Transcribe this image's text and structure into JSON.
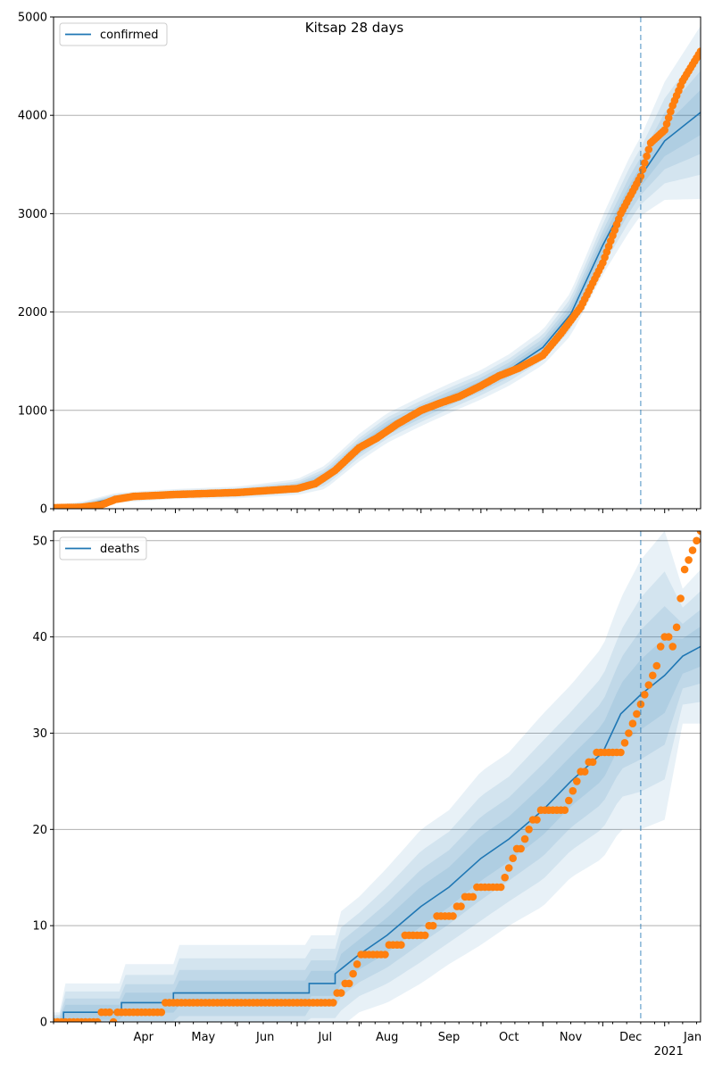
{
  "figure": {
    "title": "Kitsap 28 days"
  },
  "colors": {
    "model": "#1f77b4",
    "observed": "#ff7f0e",
    "band": "#1f77b4",
    "grid": "#b0b0b0",
    "forecast_line": "#1f77b4"
  },
  "x_axis": {
    "months": [
      {
        "label": "Apr",
        "date": "2020-04-01"
      },
      {
        "label": "May",
        "date": "2020-05-01"
      },
      {
        "label": "Jun",
        "date": "2020-06-01"
      },
      {
        "label": "Jul",
        "date": "2020-07-01"
      },
      {
        "label": "Aug",
        "date": "2020-08-01"
      },
      {
        "label": "Sep",
        "date": "2020-09-01"
      },
      {
        "label": "Oct",
        "date": "2020-10-01"
      },
      {
        "label": "Nov",
        "date": "2020-11-01"
      },
      {
        "label": "Dec",
        "date": "2020-12-01"
      },
      {
        "label": "Jan",
        "date": "2021-01-01"
      }
    ],
    "year_label": "2021",
    "xlim": [
      "2020-03-01",
      "2021-01-19"
    ],
    "forecast_start": "2020-12-20"
  },
  "chart_data": [
    {
      "type": "line",
      "legend": "confirmed",
      "legend_position": "top-left",
      "ylim": [
        0,
        5000
      ],
      "yticks": [
        0,
        1000,
        2000,
        3000,
        4000,
        5000
      ],
      "grid": "horizontal",
      "model": {
        "x": [
          "2020-03-01",
          "2020-03-15",
          "2020-04-01",
          "2020-04-15",
          "2020-05-01",
          "2020-06-01",
          "2020-07-01",
          "2020-07-15",
          "2020-08-01",
          "2020-08-15",
          "2020-09-01",
          "2020-09-15",
          "2020-10-01",
          "2020-10-15",
          "2020-11-01",
          "2020-11-15",
          "2020-12-01",
          "2020-12-15",
          "2020-12-20",
          "2021-01-01",
          "2021-01-19"
        ],
        "y": [
          10,
          30,
          110,
          130,
          150,
          165,
          220,
          320,
          620,
          820,
          990,
          1120,
          1260,
          1410,
          1640,
          1980,
          2680,
          3220,
          3380,
          3740,
          4030
        ],
        "band_spread": [
          30,
          40,
          50,
          50,
          50,
          60,
          80,
          120,
          140,
          150,
          150,
          150,
          150,
          160,
          180,
          220,
          300,
          380,
          400,
          600,
          880
        ]
      },
      "observed": {
        "x": [
          "2020-03-01",
          "2020-03-15",
          "2020-03-25",
          "2020-04-01",
          "2020-04-10",
          "2020-05-01",
          "2020-06-01",
          "2020-07-01",
          "2020-07-10",
          "2020-07-20",
          "2020-08-01",
          "2020-08-10",
          "2020-08-20",
          "2020-09-01",
          "2020-09-10",
          "2020-09-20",
          "2020-10-01",
          "2020-10-10",
          "2020-10-20",
          "2020-11-01",
          "2020-11-10",
          "2020-11-20",
          "2020-12-01",
          "2020-12-10",
          "2020-12-20",
          "2020-12-25",
          "2021-01-01",
          "2021-01-05",
          "2021-01-10",
          "2021-01-19"
        ],
        "y": [
          10,
          15,
          40,
          95,
          125,
          145,
          165,
          205,
          255,
          390,
          620,
          720,
          860,
          1000,
          1070,
          1140,
          1250,
          1350,
          1430,
          1560,
          1780,
          2050,
          2500,
          3000,
          3380,
          3720,
          3850,
          4100,
          4350,
          4650
        ]
      }
    },
    {
      "type": "line",
      "legend": "deaths",
      "legend_position": "top-left",
      "ylim": [
        0,
        51
      ],
      "yticks": [
        0,
        10,
        20,
        30,
        40,
        50
      ],
      "grid": "horizontal",
      "model": {
        "x": [
          "2020-03-01",
          "2020-03-06",
          "2020-03-06",
          "2020-04-04",
          "2020-04-04",
          "2020-04-30",
          "2020-04-30",
          "2020-07-07",
          "2020-07-07",
          "2020-07-20",
          "2020-07-20",
          "2020-08-01",
          "2020-08-15",
          "2020-09-01",
          "2020-09-15",
          "2020-10-01",
          "2020-10-15",
          "2020-11-01",
          "2020-11-15",
          "2020-12-01",
          "2020-12-10",
          "2020-12-20",
          "2021-01-01",
          "2021-01-10",
          "2021-01-19"
        ],
        "y": [
          0,
          0,
          1,
          1,
          2,
          2,
          3,
          3,
          4,
          4,
          5,
          7,
          9,
          12,
          14,
          17,
          19,
          22,
          25,
          28,
          32,
          34,
          36,
          38,
          39
        ],
        "band_spread": [
          1,
          1,
          3,
          3,
          4,
          4,
          5,
          5,
          5,
          5,
          6,
          6,
          7,
          8,
          8,
          9,
          9,
          10,
          10,
          11,
          12,
          14,
          15,
          7,
          8
        ]
      },
      "observed": {
        "x": [
          "2020-03-01",
          "2020-03-20",
          "2020-03-27",
          "2020-03-31",
          "2020-04-01",
          "2020-04-20",
          "2020-05-01",
          "2020-06-01",
          "2020-07-01",
          "2020-07-20",
          "2020-07-22",
          "2020-07-28",
          "2020-07-31",
          "2020-08-03",
          "2020-08-10",
          "2020-08-20",
          "2020-08-25",
          "2020-09-01",
          "2020-09-10",
          "2020-09-15",
          "2020-09-20",
          "2020-09-25",
          "2020-10-01",
          "2020-10-10",
          "2020-10-15",
          "2020-10-20",
          "2020-10-25",
          "2020-11-01",
          "2020-11-10",
          "2020-11-15",
          "2020-11-20",
          "2020-11-25",
          "2020-12-01",
          "2020-12-10",
          "2020-12-15",
          "2020-12-20",
          "2020-12-25",
          "2021-01-01",
          "2021-01-05",
          "2021-01-08",
          "2021-01-10",
          "2021-01-14",
          "2021-01-19"
        ],
        "y": [
          0,
          0,
          1,
          0,
          1,
          1,
          2,
          2,
          2,
          2,
          3,
          4,
          6,
          7,
          7,
          8,
          9,
          9,
          11,
          11,
          12,
          13,
          14,
          14,
          16,
          18,
          20,
          22,
          22,
          23,
          26,
          27,
          28,
          28,
          30,
          33,
          35,
          40,
          39,
          42,
          46,
          49,
          51
        ]
      }
    }
  ]
}
